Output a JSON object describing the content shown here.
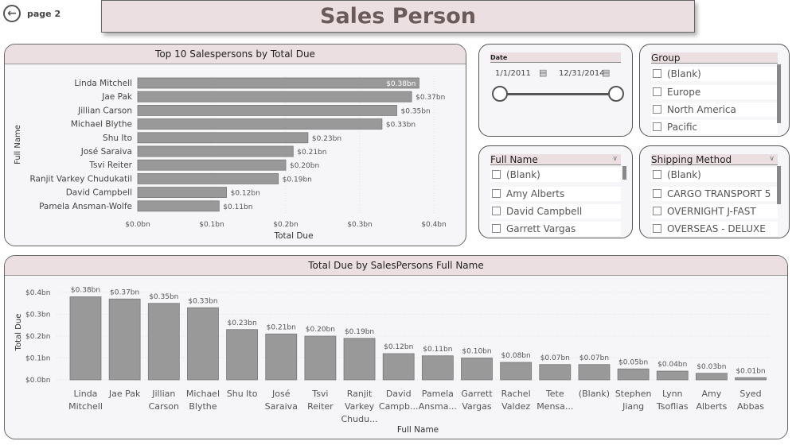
{
  "nav": {
    "back_icon": "arrow-left-circle-icon",
    "page_label": "page 2"
  },
  "header": {
    "title": "Sales Person"
  },
  "colors": {
    "header_bg": "#ecdfe1",
    "bar": "#999999",
    "panel_bg": "#f6f5f7"
  },
  "slicers": {
    "date": {
      "title": "Date",
      "start": "1/1/2011",
      "end": "12/31/2014",
      "range": [
        0,
        1
      ]
    },
    "group": {
      "title": "Group",
      "items": [
        "(Blank)",
        "Europe",
        "North America",
        "Pacific"
      ]
    },
    "full_name": {
      "title": "Full Name",
      "items": [
        "(Blank)",
        "Amy Alberts",
        "David Campbell",
        "Garrett Vargas"
      ]
    },
    "shipping": {
      "title": "Shipping Method",
      "items": [
        "(Blank)",
        "CARGO TRANSPORT 5",
        "OVERNIGHT J-FAST",
        "OVERSEAS - DELUXE"
      ]
    }
  },
  "chart_data": [
    {
      "type": "bar",
      "orientation": "horizontal",
      "title": "Top 10 Salespersons by Total Due",
      "xlabel": "Total Due",
      "ylabel": "Full Name",
      "categories": [
        "Linda Mitchell",
        "Jae Pak",
        "Jillian Carson",
        "Michael Blythe",
        "Shu Ito",
        "José Saraiva",
        "Tsvi Reiter",
        "Ranjit Varkey Chudukatil",
        "David Campbell",
        "Pamela Ansman-Wolfe"
      ],
      "values": [
        0.38,
        0.37,
        0.35,
        0.33,
        0.23,
        0.21,
        0.2,
        0.19,
        0.12,
        0.11
      ],
      "data_labels": [
        "$0.38bn",
        "$0.37bn",
        "$0.35bn",
        "$0.33bn",
        "$0.23bn",
        "$0.21bn",
        "$0.20bn",
        "$0.19bn",
        "$0.12bn",
        "$0.11bn"
      ],
      "xlim": [
        0,
        0.4
      ],
      "ticks": [
        "$0.0bn",
        "$0.1bn",
        "$0.2bn",
        "$0.3bn",
        "$0.4bn"
      ],
      "grid": true
    },
    {
      "type": "bar",
      "orientation": "vertical",
      "title": "Total Due by SalesPersons Full Name",
      "xlabel": "Full Name",
      "ylabel": "Total Due",
      "categories": [
        [
          "Linda",
          "Mitchell"
        ],
        [
          "Jae Pak"
        ],
        [
          "Jillian",
          "Carson"
        ],
        [
          "Michael",
          "Blythe"
        ],
        [
          "Shu Ito"
        ],
        [
          "José",
          "Saraiva"
        ],
        [
          "Tsvi",
          "Reiter"
        ],
        [
          "Ranjit",
          "Varkey",
          "Chudu..."
        ],
        [
          "David",
          "Campb..."
        ],
        [
          "Pamela",
          "Ansma..."
        ],
        [
          "Garrett",
          "Vargas"
        ],
        [
          "Rachel",
          "Valdez"
        ],
        [
          "Tete",
          "Mensa..."
        ],
        [
          "(Blank)"
        ],
        [
          "Stephen",
          "Jiang"
        ],
        [
          "Lynn",
          "Tsoflias"
        ],
        [
          "Amy",
          "Alberts"
        ],
        [
          "Syed",
          "Abbas"
        ]
      ],
      "values": [
        0.38,
        0.37,
        0.35,
        0.33,
        0.23,
        0.21,
        0.2,
        0.19,
        0.12,
        0.11,
        0.1,
        0.08,
        0.07,
        0.07,
        0.05,
        0.04,
        0.03,
        0.01
      ],
      "data_labels": [
        "$0.38bn",
        "$0.37bn",
        "$0.35bn",
        "$0.33bn",
        "$0.23bn",
        "$0.21bn",
        "$0.20bn",
        "$0.19bn",
        "$0.12bn",
        "$0.11bn",
        "$0.10bn",
        "$0.08bn",
        "$0.07bn",
        "$0.07bn",
        "$0.05bn",
        "$0.04bn",
        "$0.03bn",
        "$0.01bn"
      ],
      "ylim": [
        0,
        0.4
      ],
      "ticks": [
        "$0.0bn",
        "$0.1bn",
        "$0.2bn",
        "$0.3bn",
        "$0.4bn"
      ],
      "grid": true
    }
  ]
}
